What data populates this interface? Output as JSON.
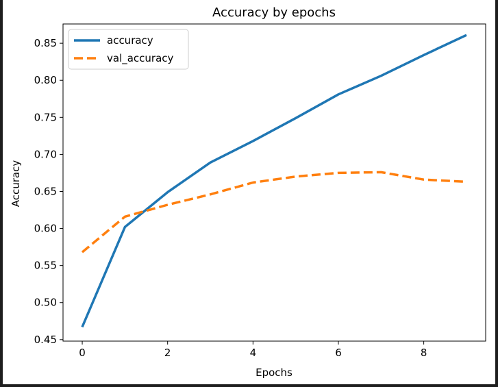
{
  "chart_data": {
    "type": "line",
    "title": "Accuracy by epochs",
    "xlabel": "Epochs",
    "ylabel": "Accuracy",
    "x": [
      0,
      1,
      2,
      3,
      4,
      5,
      6,
      7,
      8,
      9
    ],
    "xlim": [
      -0.45,
      9.45
    ],
    "ylim": [
      0.448,
      0.876
    ],
    "xticks": [
      0,
      2,
      4,
      6,
      8
    ],
    "xtick_labels": [
      "0",
      "2",
      "4",
      "6",
      "8"
    ],
    "yticks": [
      0.45,
      0.5,
      0.55,
      0.6,
      0.65,
      0.7,
      0.75,
      0.8,
      0.85
    ],
    "ytick_labels": [
      "0.45",
      "0.50",
      "0.55",
      "0.60",
      "0.65",
      "0.70",
      "0.75",
      "0.80",
      "0.85"
    ],
    "grid": false,
    "legend_position": "upper-left",
    "series": [
      {
        "name": "accuracy",
        "color": "#1f77b4",
        "linestyle": "solid",
        "values": [
          0.467,
          0.602,
          0.649,
          0.689,
          0.718,
          0.749,
          0.781,
          0.806,
          0.834,
          0.861
        ]
      },
      {
        "name": "val_accuracy",
        "color": "#ff7f0e",
        "linestyle": "dashed",
        "values": [
          0.568,
          0.616,
          0.632,
          0.646,
          0.662,
          0.67,
          0.675,
          0.676,
          0.666,
          0.663
        ]
      }
    ]
  }
}
